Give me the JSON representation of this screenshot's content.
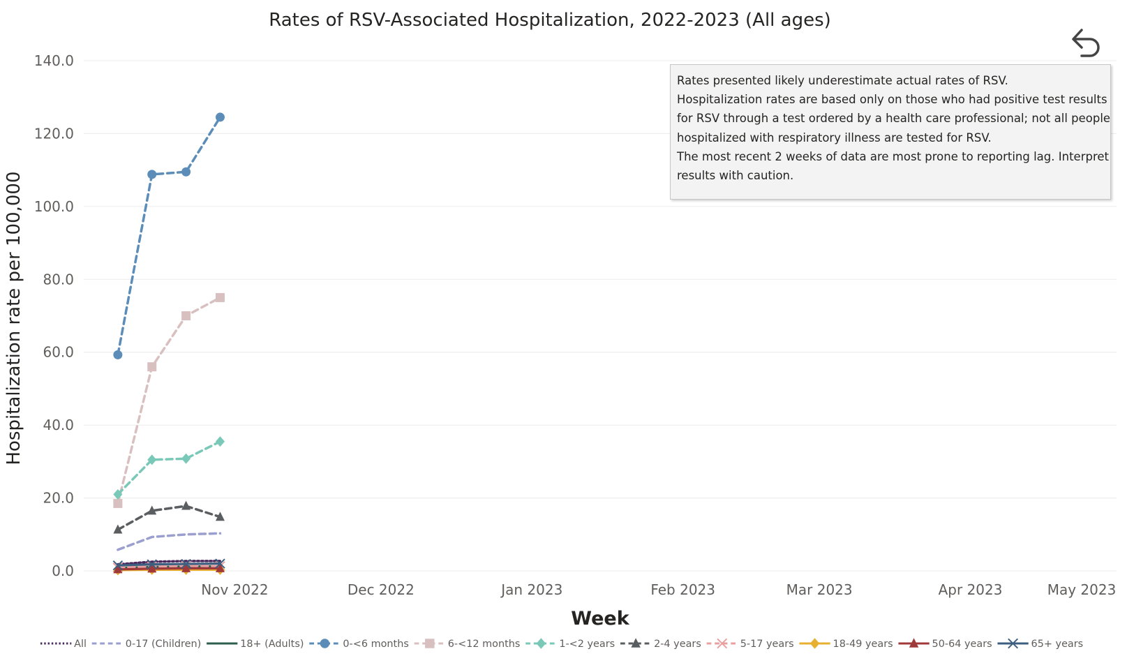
{
  "chart_data": {
    "type": "line",
    "title": "Rates of RSV-Associated Hospitalization, 2022-2023 (All ages)",
    "xlabel": "Week",
    "ylabel": "Hospitalization rate per 100,000",
    "ylim": [
      0,
      140
    ],
    "xlim": [
      "2022-10-01",
      "2023-05-01"
    ],
    "y_ticks": [
      "0.0",
      "20.0",
      "40.0",
      "60.0",
      "80.0",
      "100.0",
      "120.0",
      "140.0"
    ],
    "x_ticks": [
      {
        "date": "2022-11-01",
        "label": "Nov 2022"
      },
      {
        "date": "2022-12-01",
        "label": "Dec 2022"
      },
      {
        "date": "2023-01-01",
        "label": "Jan 2023"
      },
      {
        "date": "2023-02-01",
        "label": "Feb 2023"
      },
      {
        "date": "2023-03-01",
        "label": "Mar 2023"
      },
      {
        "date": "2023-04-01",
        "label": "Apr 2023"
      },
      {
        "date": "2023-05-01",
        "label": "May 2023"
      }
    ],
    "grid": true,
    "legend_position": "bottom",
    "x": [
      "2022-10-08",
      "2022-10-15",
      "2022-10-22",
      "2022-10-29"
    ],
    "series": [
      {
        "name": "All",
        "values": [
          1.8,
          2.5,
          2.7,
          2.7
        ],
        "color": "#4a2a5e",
        "dash": "dotted",
        "marker": "none"
      },
      {
        "name": "0-17 (Children)",
        "values": [
          5.8,
          9.3,
          10.0,
          10.3
        ],
        "color": "#9a9fd0",
        "dash": "dashed",
        "marker": "none"
      },
      {
        "name": "18+ (Adults)",
        "values": [
          0.8,
          1.1,
          1.2,
          1.3
        ],
        "color": "#2e5e4e",
        "dash": "solid",
        "marker": "none"
      },
      {
        "name": "0-<6 months",
        "values": [
          59.3,
          108.8,
          109.5,
          124.5
        ],
        "color": "#5b8db8",
        "dash": "dashed",
        "marker": "circle"
      },
      {
        "name": "6-<12 months",
        "values": [
          18.5,
          56.0,
          70.0,
          75.0
        ],
        "color": "#d9c0c0",
        "dash": "dashed",
        "marker": "square"
      },
      {
        "name": "1-<2 years",
        "values": [
          21.0,
          30.5,
          30.8,
          35.5
        ],
        "color": "#79c8b8",
        "dash": "dashed",
        "marker": "diamond"
      },
      {
        "name": "2-4 years",
        "values": [
          11.3,
          16.5,
          17.8,
          14.8
        ],
        "color": "#5a5e60",
        "dash": "dashed",
        "marker": "triangle"
      },
      {
        "name": "5-17 years",
        "values": [
          0.9,
          1.2,
          1.4,
          1.3
        ],
        "color": "#e8a0a0",
        "dash": "dashed",
        "marker": "x"
      },
      {
        "name": "18-49 years",
        "values": [
          0.2,
          0.3,
          0.3,
          0.3
        ],
        "color": "#e8b030",
        "dash": "solid",
        "marker": "diamond"
      },
      {
        "name": "50-64 years",
        "values": [
          0.4,
          0.6,
          0.7,
          0.7
        ],
        "color": "#a03a3a",
        "dash": "solid",
        "marker": "triangle"
      },
      {
        "name": "65+ years",
        "values": [
          1.5,
          1.8,
          1.9,
          2.0
        ],
        "color": "#3c5f80",
        "dash": "solid",
        "marker": "x"
      }
    ]
  },
  "note": {
    "lines": [
      "Rates presented likely underestimate actual rates of RSV.",
      "Hospitalization rates are based only on those who had positive test results",
      "for RSV through a test ordered by a health care professional; not all people",
      "hospitalized with respiratory illness are tested for RSV.",
      "The most recent 2 weeks of data are most prone to reporting lag. Interpret",
      "results with caution."
    ]
  },
  "controls": {
    "back_icon": "undo-arrow-icon"
  }
}
